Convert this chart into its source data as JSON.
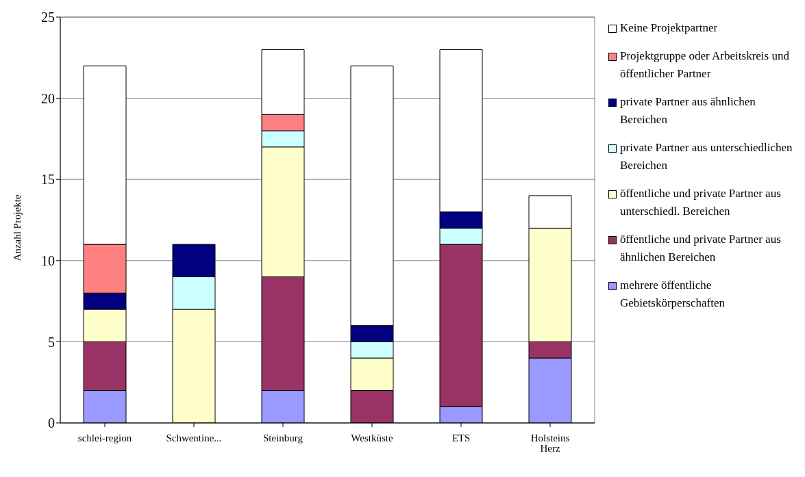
{
  "chart_data": {
    "type": "bar",
    "stacked": true,
    "ylabel": "Anzahl Projekte",
    "categories": [
      "schlei-region",
      "Schwentine...",
      "Steinburg",
      "Westküste",
      "ETS",
      "Holsteins Herz"
    ],
    "series": [
      {
        "name": "mehrere öffentliche Gebietskörperschaften",
        "color": "#9999ff",
        "values": [
          2,
          0,
          2,
          0,
          1,
          4
        ]
      },
      {
        "name": "öffentliche und private Partner aus ähnlichen Bereichen",
        "color": "#993366",
        "values": [
          3,
          0,
          7,
          2,
          10,
          1
        ]
      },
      {
        "name": "öffentliche und private Partner aus unterschiedl. Bereichen",
        "color": "#ffffcc",
        "values": [
          2,
          7,
          8,
          2,
          0,
          7
        ]
      },
      {
        "name": "private Partner aus unterschiedlichen Bereichen",
        "color": "#ccffff",
        "values": [
          0,
          2,
          1,
          1,
          1,
          0
        ]
      },
      {
        "name": "private Partner aus ähnlichen Bereichen",
        "color": "#000080",
        "values": [
          1,
          2,
          0,
          1,
          1,
          0
        ]
      },
      {
        "name": "Projektgruppe oder Arbeitskreis und öffentlicher Partner",
        "color": "#ff8080",
        "values": [
          3,
          0,
          1,
          0,
          0,
          0
        ]
      },
      {
        "name": "Keine Projektpartner",
        "color": "#ffffff",
        "values": [
          11,
          0,
          4,
          16,
          10,
          2
        ]
      }
    ],
    "ylim": [
      0,
      25
    ],
    "yticks": [
      0,
      5,
      10,
      15,
      20,
      25
    ],
    "grid": "y",
    "legend": "right"
  }
}
